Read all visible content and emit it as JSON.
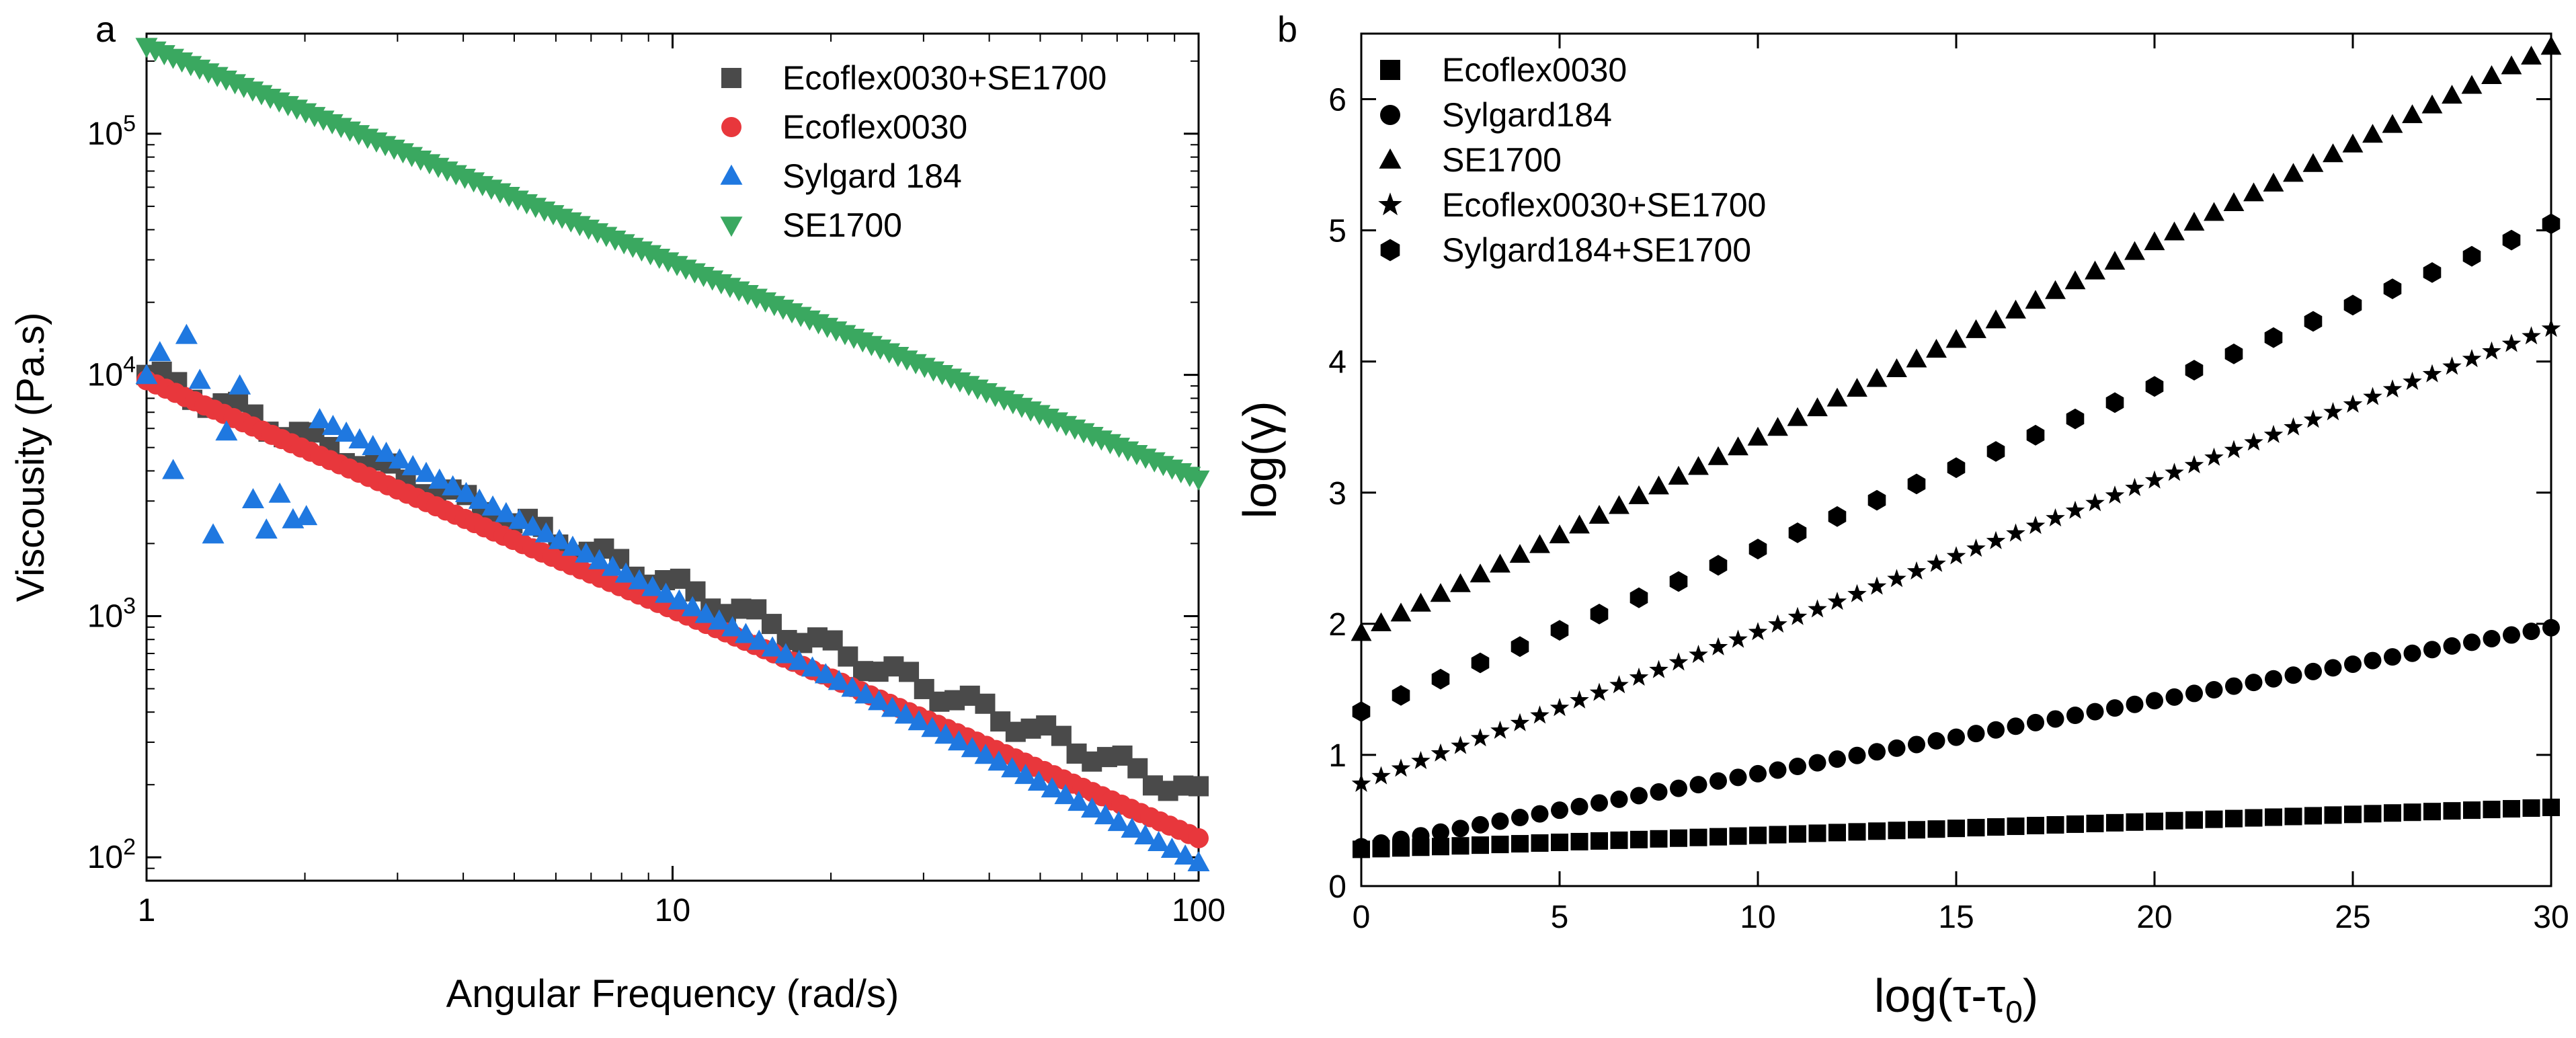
{
  "chart_data": [
    {
      "type": "scatter",
      "panel_label": "a",
      "xlabel": "Angular Frequency (rad/s)",
      "ylabel": "Viscousity (Pa.s)",
      "xscale": "log",
      "yscale": "log",
      "xlim": [
        1,
        100
      ],
      "ylim": [
        80,
        260000
      ],
      "x_ticks": [
        {
          "value": 1,
          "label": "1"
        },
        {
          "value": 10,
          "label": "10"
        },
        {
          "value": 100,
          "label": "100"
        }
      ],
      "y_ticks": [
        {
          "value": 100,
          "base": "10",
          "exp": "2"
        },
        {
          "value": 1000,
          "base": "10",
          "exp": "3"
        },
        {
          "value": 10000,
          "base": "10",
          "exp": "4"
        },
        {
          "value": 100000,
          "base": "10",
          "exp": "5"
        }
      ],
      "legend_position": "top-right",
      "series": [
        {
          "name": "Ecoflex0030+SE1700",
          "marker": "square",
          "color": "#4a4a4a",
          "x_range": [
            1,
            100
          ],
          "count": 70,
          "y_start": 10000,
          "y_end": 180
        },
        {
          "name": "Ecoflex0030",
          "marker": "circle",
          "color": "#e8373c",
          "x_range": [
            1,
            100
          ],
          "count": 110,
          "y_start": 9500,
          "y_end": 120
        },
        {
          "name": "Sylgard 184",
          "marker": "triangle-up",
          "color": "#1f78e0",
          "x_range": [
            1,
            100
          ],
          "count": 80,
          "y_start": 15000,
          "y_end": 95
        },
        {
          "name": "SE1700",
          "marker": "triangle-down",
          "color": "#3aa860",
          "x_range": [
            1,
            100
          ],
          "count": 120,
          "y_start": 230000,
          "y_end": 3700
        }
      ]
    },
    {
      "type": "scatter",
      "panel_label": "b",
      "xlabel_base": "log(τ-τ",
      "xlabel_sub": "0",
      "xlabel_end": ")",
      "ylabel": "log(γ)",
      "xlim": [
        0,
        30
      ],
      "ylim": [
        0,
        6.5
      ],
      "x_ticks": [
        0,
        5,
        10,
        15,
        20,
        25,
        30
      ],
      "y_ticks": [
        0,
        1,
        2,
        3,
        4,
        5,
        6
      ],
      "legend_position": "top-left",
      "series": [
        {
          "name": "Ecoflex0030",
          "marker": "square",
          "color": "#000000",
          "x_range": [
            0,
            30
          ],
          "count": 61,
          "y_start": 0.28,
          "y_end": 0.6
        },
        {
          "name": "Sylgard184",
          "marker": "circle",
          "color": "#000000",
          "x_range": [
            0,
            30
          ],
          "count": 61,
          "y_start": 0.3,
          "y_end": 1.97
        },
        {
          "name": "SE1700",
          "marker": "triangle-up",
          "color": "#000000",
          "x_range": [
            0,
            30
          ],
          "count": 61,
          "y_start": 1.93,
          "y_end": 6.4
        },
        {
          "name": "Ecoflex0030+SE1700",
          "marker": "star",
          "color": "#000000",
          "x_range": [
            0,
            30
          ],
          "count": 61,
          "y_start": 0.78,
          "y_end": 4.25
        },
        {
          "name": "Sylgard184+SE1700",
          "marker": "hexagon",
          "color": "#000000",
          "x_range": [
            0,
            30
          ],
          "count": 31,
          "y_start": 1.33,
          "y_end": 5.05
        }
      ]
    }
  ]
}
